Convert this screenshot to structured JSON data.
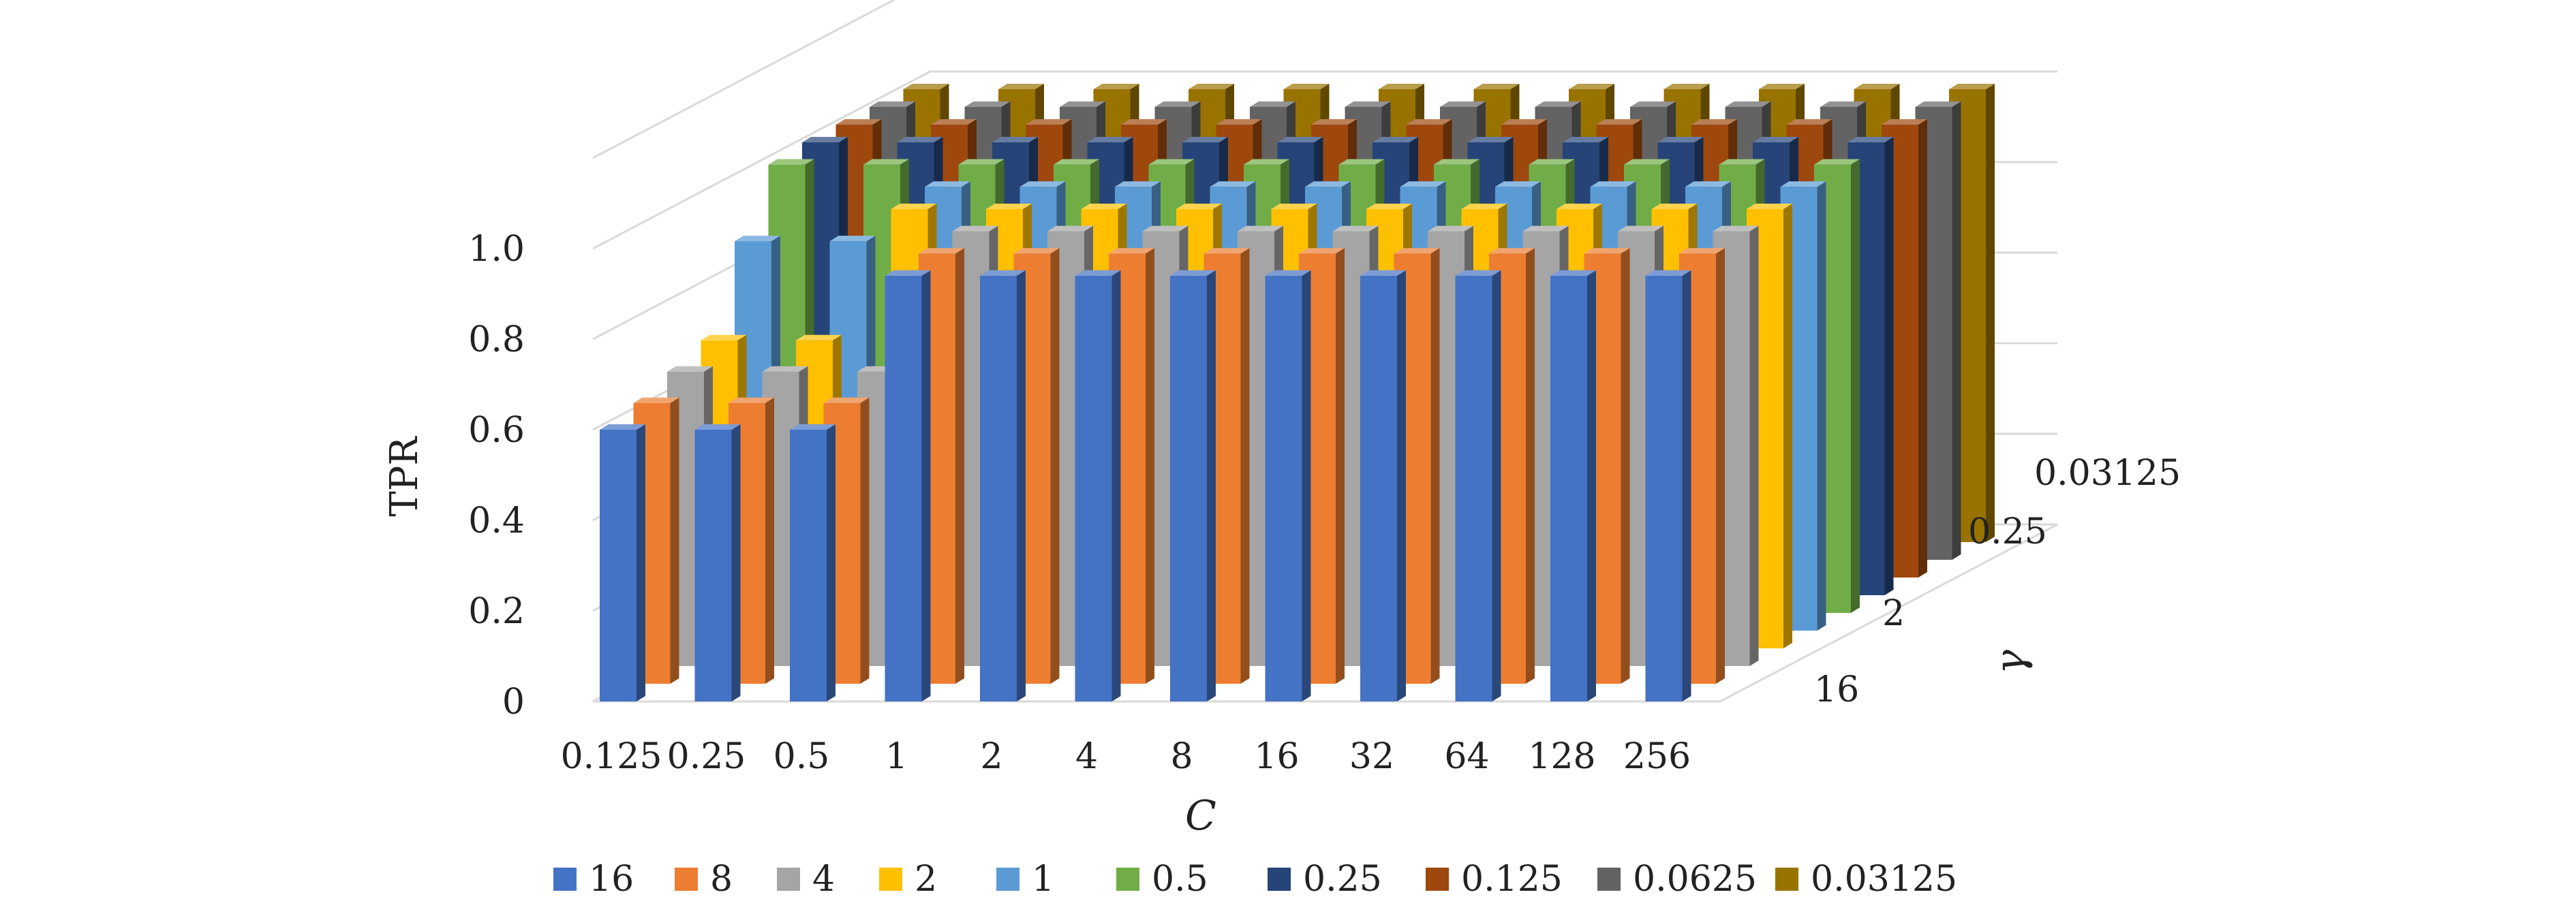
{
  "chart_data": {
    "type": "bar3d",
    "xlabel": "C",
    "ylabel": "TPR",
    "zlabel": "γ",
    "categories": [
      "0.125",
      "0.25",
      "0.5",
      "1",
      "2",
      "4",
      "8",
      "16",
      "32",
      "64",
      "128",
      "256"
    ],
    "depth_tick_labels": [
      "16",
      "2",
      "0.25",
      "0.03125"
    ],
    "y_ticks": [
      "0",
      "0.2",
      "0.4",
      "0.6",
      "0.8",
      "1.0"
    ],
    "ylim": [
      0,
      1.0
    ],
    "grid": true,
    "legend_position": "bottom",
    "series": [
      {
        "name": "16",
        "color": "#4472C4",
        "values": [
          0.6,
          0.6,
          0.6,
          0.94,
          0.94,
          0.94,
          0.94,
          0.94,
          0.94,
          0.94,
          0.94,
          0.94
        ]
      },
      {
        "name": "8",
        "color": "#ED7D31",
        "values": [
          0.62,
          0.62,
          0.62,
          0.95,
          0.95,
          0.95,
          0.95,
          0.95,
          0.95,
          0.95,
          0.95,
          0.95
        ]
      },
      {
        "name": "4",
        "color": "#A5A5A5",
        "values": [
          0.65,
          0.65,
          0.65,
          0.96,
          0.96,
          0.96,
          0.96,
          0.96,
          0.96,
          0.96,
          0.96,
          0.96
        ]
      },
      {
        "name": "2",
        "color": "#FFC000",
        "values": [
          0.68,
          0.68,
          0.97,
          0.97,
          0.97,
          0.97,
          0.97,
          0.97,
          0.97,
          0.97,
          0.97,
          0.97
        ]
      },
      {
        "name": "1",
        "color": "#5B9BD5",
        "values": [
          0.86,
          0.86,
          0.98,
          0.98,
          0.98,
          0.98,
          0.98,
          0.98,
          0.98,
          0.98,
          0.98,
          0.98
        ]
      },
      {
        "name": "0.5",
        "color": "#70AD47",
        "values": [
          0.99,
          0.99,
          0.99,
          0.99,
          0.99,
          0.99,
          0.99,
          0.99,
          0.99,
          0.99,
          0.99,
          0.99
        ]
      },
      {
        "name": "0.25",
        "color": "#264478",
        "values": [
          1.0,
          1.0,
          1.0,
          1.0,
          1.0,
          1.0,
          1.0,
          1.0,
          1.0,
          1.0,
          1.0,
          1.0
        ]
      },
      {
        "name": "0.125",
        "color": "#9E480E",
        "values": [
          1.0,
          1.0,
          1.0,
          1.0,
          1.0,
          1.0,
          1.0,
          1.0,
          1.0,
          1.0,
          1.0,
          1.0
        ]
      },
      {
        "name": "0.0625",
        "color": "#636363",
        "values": [
          1.0,
          1.0,
          1.0,
          1.0,
          1.0,
          1.0,
          1.0,
          1.0,
          1.0,
          1.0,
          1.0,
          1.0
        ]
      },
      {
        "name": "0.03125",
        "color": "#997300",
        "values": [
          1.0,
          1.0,
          1.0,
          1.0,
          1.0,
          1.0,
          1.0,
          1.0,
          1.0,
          1.0,
          1.0,
          1.0
        ]
      }
    ]
  }
}
